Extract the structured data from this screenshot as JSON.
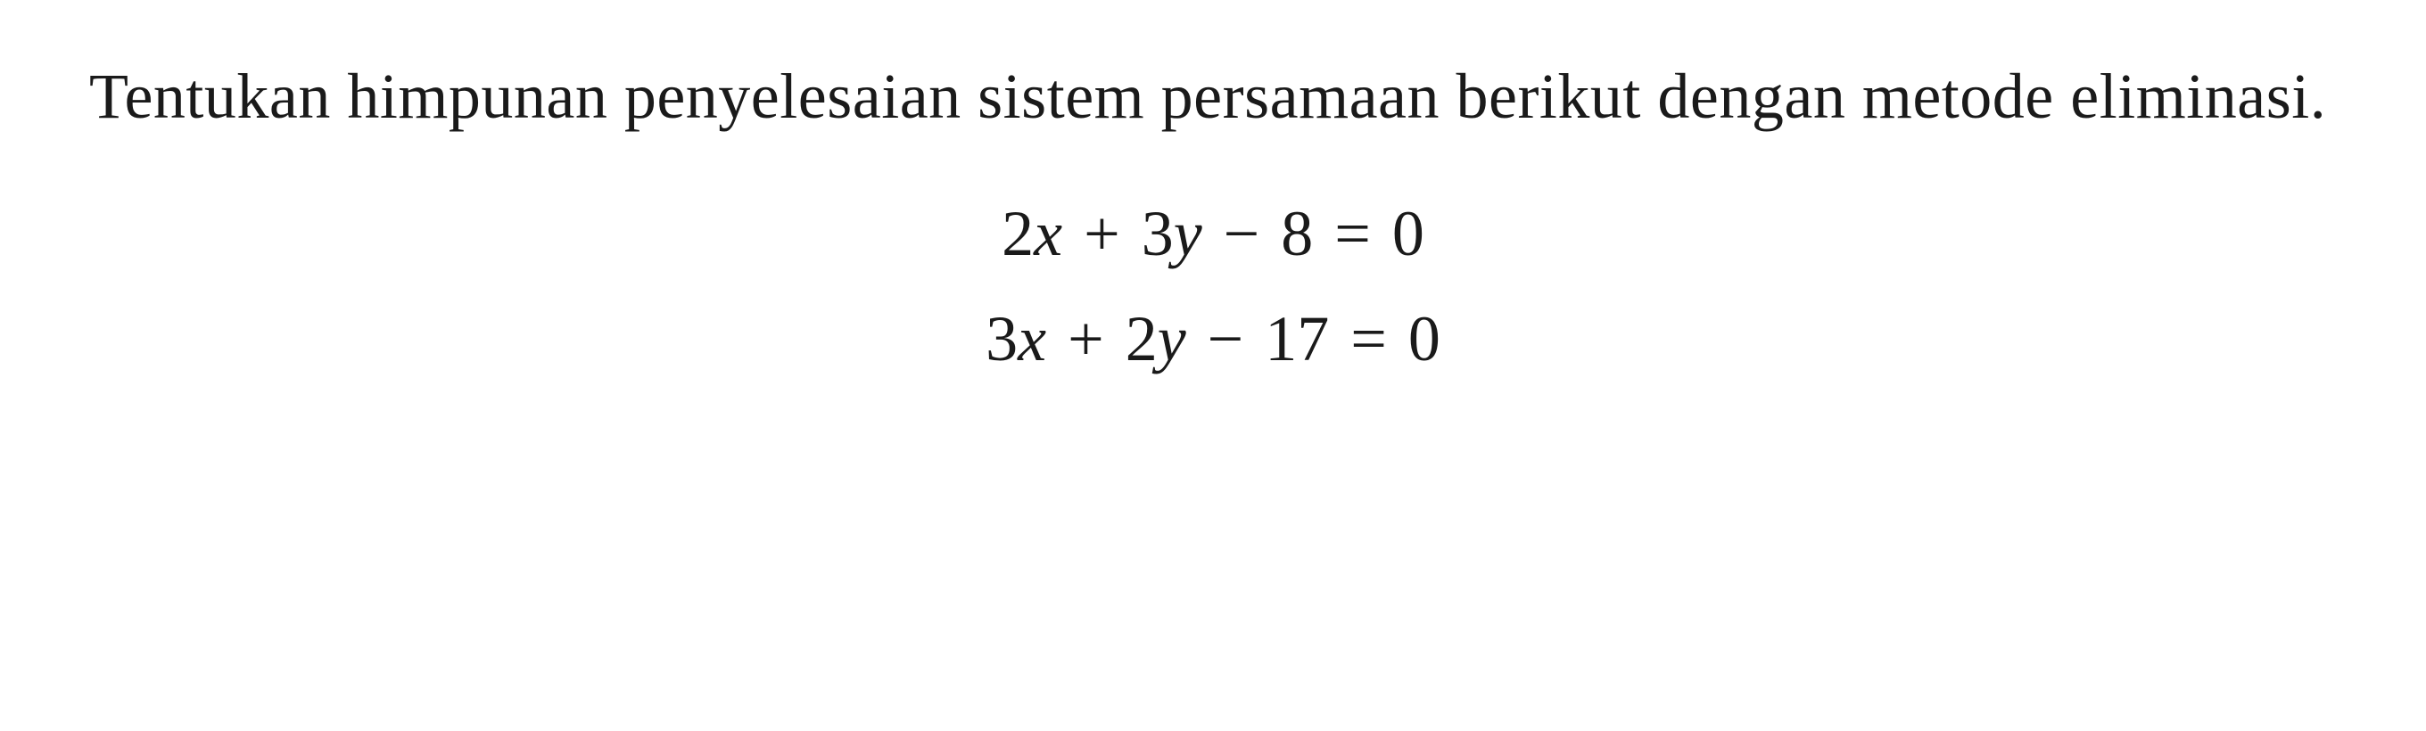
{
  "problem": {
    "instruction": "Tentukan himpunan penyelesaian sistem persamaan berikut dengan metode eliminasi.",
    "instruction_fontsize": 72,
    "equations": [
      {
        "terms": [
          {
            "coef": "2",
            "var": "x"
          },
          {
            "op": "+",
            "coef": "3",
            "var": "y"
          },
          {
            "op": "−",
            "coef": "8"
          }
        ],
        "rhs": "0",
        "display": "2x + 3y − 8 = 0"
      },
      {
        "terms": [
          {
            "coef": "3",
            "var": "x"
          },
          {
            "op": "+",
            "coef": "2",
            "var": "y"
          },
          {
            "op": "−",
            "coef": "17"
          }
        ],
        "rhs": "0",
        "display": "3x + 2y − 17 = 0"
      }
    ],
    "equation_fontsize": 72
  },
  "style": {
    "background_color": "#ffffff",
    "text_color": "#1a1a1a",
    "font_family": "Palatino Linotype, Book Antiqua, Palatino, Georgia, serif"
  },
  "eq1": {
    "c1": "2",
    "v1": "x",
    "op1": "+",
    "c2": "3",
    "v2": "y",
    "op2": "−",
    "c3": "8",
    "eq": "=",
    "rhs": "0"
  },
  "eq2": {
    "c1": "3",
    "v1": "x",
    "op1": "+",
    "c2": "2",
    "v2": "y",
    "op2": "−",
    "c3": "17",
    "eq": "=",
    "rhs": "0"
  }
}
